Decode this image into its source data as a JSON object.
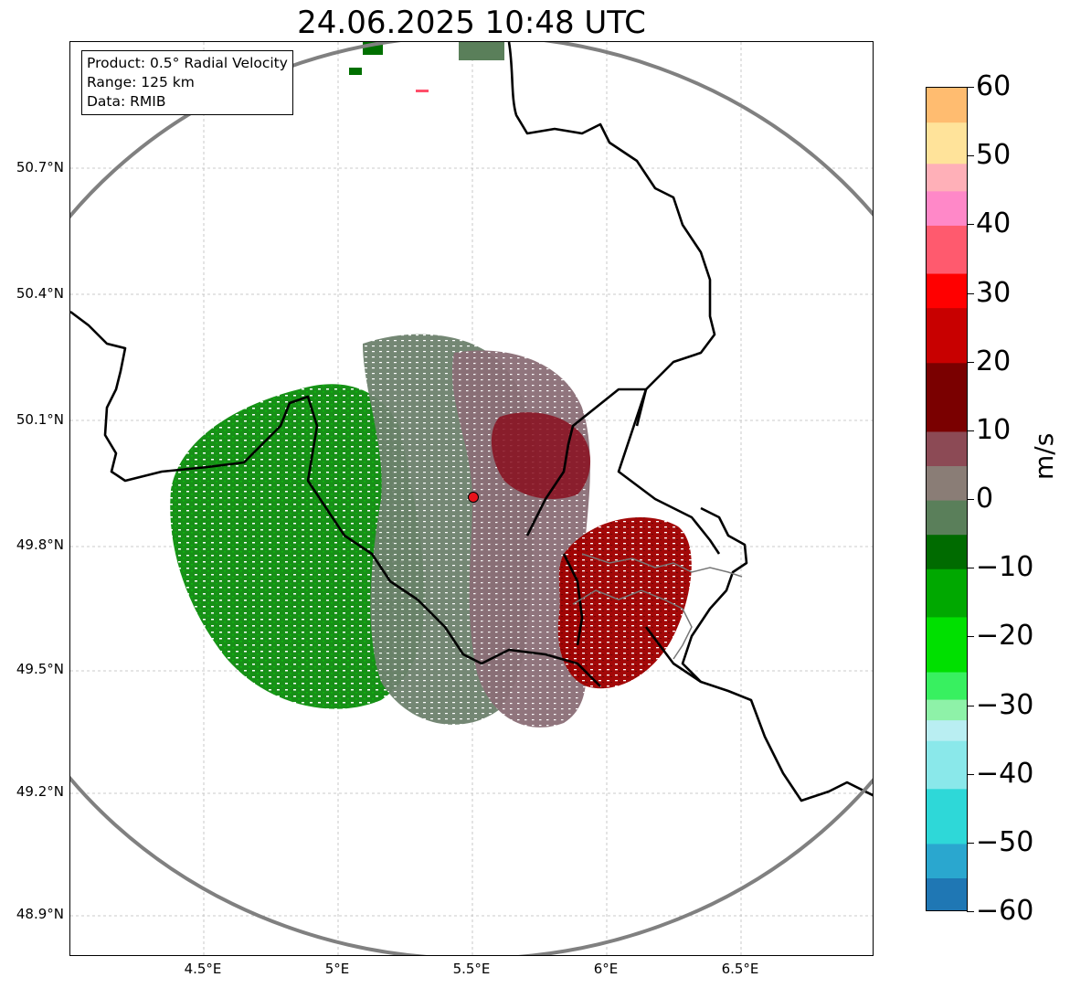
{
  "title": "24.06.2025 10:48 UTC",
  "info": {
    "product": "Product: 0.5° Radial Velocity",
    "range": "Range: 125 km",
    "source": "Data: RMIB"
  },
  "map": {
    "lat_labels": [
      "50.7°N",
      "50.4°N",
      "50.1°N",
      "49.8°N",
      "49.5°N",
      "49.2°N",
      "48.9°N"
    ],
    "lon_labels": [
      "4.5°E",
      "5°E",
      "5.5°E",
      "6°E",
      "6.5°E"
    ],
    "radar_site": {
      "lat": 49.915,
      "lon": 5.505,
      "marker_color": "#e8131b"
    },
    "range_ring_color": "#808080",
    "border_color": "#000000",
    "echo_regions": [
      {
        "name": "inbound-strong",
        "velocity_ms": -15,
        "color": "#008a00"
      },
      {
        "name": "inbound-light",
        "velocity_ms": -3,
        "color": "#647d64"
      },
      {
        "name": "near-zero",
        "velocity_ms": 3,
        "color": "#8a7075"
      },
      {
        "name": "outbound-strong",
        "velocity_ms": 15,
        "color": "#9b0000"
      }
    ]
  },
  "colorbar": {
    "unit": "m/s",
    "min": -60,
    "max": 60,
    "ticks": [
      "60",
      "50",
      "40",
      "30",
      "20",
      "10",
      "0",
      "−10",
      "−20",
      "−30",
      "−40",
      "−50",
      "−60"
    ],
    "stops": [
      {
        "v": -60,
        "color": "#1f77b4"
      },
      {
        "v": -55,
        "color": "#2aa7cf"
      },
      {
        "v": -50,
        "color": "#2ed8d8"
      },
      {
        "v": -42,
        "color": "#8ae8ea"
      },
      {
        "v": -35,
        "color": "#b9eef2"
      },
      {
        "v": -32,
        "color": "#8ef2a8"
      },
      {
        "v": -29,
        "color": "#38f060"
      },
      {
        "v": -25,
        "color": "#00e000"
      },
      {
        "v": -17,
        "color": "#00a800"
      },
      {
        "v": -10,
        "color": "#006b00"
      },
      {
        "v": -5,
        "color": "#5a7f5a"
      },
      {
        "v": 0,
        "color": "#8a7d76"
      },
      {
        "v": 5,
        "color": "#8c4a55"
      },
      {
        "v": 10,
        "color": "#7a0000"
      },
      {
        "v": 20,
        "color": "#c80000"
      },
      {
        "v": 28,
        "color": "#ff0000"
      },
      {
        "v": 33,
        "color": "#ff5a6e"
      },
      {
        "v": 40,
        "color": "#ff88c8"
      },
      {
        "v": 45,
        "color": "#ffb0b8"
      },
      {
        "v": 49,
        "color": "#ffe39a"
      },
      {
        "v": 55,
        "color": "#ffbc70"
      },
      {
        "v": 60,
        "color": "#ff9a55"
      }
    ]
  }
}
